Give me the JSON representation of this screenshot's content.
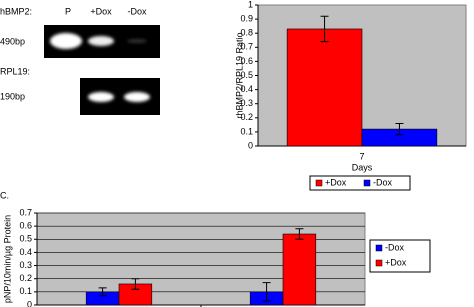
{
  "gel": {
    "panel1_label": "hBMP2:",
    "lanes": [
      "P",
      "+Dox",
      "-Dox"
    ],
    "size1": "490bp",
    "panel2_label": "RPL19:",
    "size2": "190bp"
  },
  "chart_data": [
    {
      "type": "bar",
      "ylabel": "rhBMP2/RPL19 Ratio",
      "xlabel": "Days",
      "categories": [
        "7"
      ],
      "series": [
        {
          "name": "+Dox",
          "color": "#ff0000",
          "values": [
            0.83
          ],
          "errors": [
            0.09
          ]
        },
        {
          "name": "-Dox",
          "color": "#0000ff",
          "values": [
            0.12
          ],
          "errors": [
            0.04
          ]
        }
      ],
      "ylim": [
        0,
        1
      ],
      "yticks": [
        0,
        0.1,
        0.2,
        0.3,
        0.4,
        0.5,
        0.6,
        0.7,
        0.8,
        0.9,
        1
      ],
      "grid": false,
      "legend": "bottom"
    },
    {
      "type": "bar",
      "panel_label": "C.",
      "ylabel": "pNP/10min/µg Protein",
      "categories": [
        null,
        null
      ],
      "series": [
        {
          "name": "-Dox",
          "color": "#0000ff",
          "values": [
            0.1,
            0.1
          ],
          "errors": [
            0.03,
            0.07
          ]
        },
        {
          "name": "+Dox",
          "color": "#ff0000",
          "values": [
            0.16,
            0.54
          ],
          "errors": [
            0.04,
            0.04
          ]
        }
      ],
      "ylim": [
        0,
        0.7
      ],
      "yticks": [
        0,
        0.1,
        0.2,
        0.3,
        0.4,
        0.5,
        0.6,
        0.7
      ],
      "grid": true,
      "legend": "right"
    }
  ]
}
